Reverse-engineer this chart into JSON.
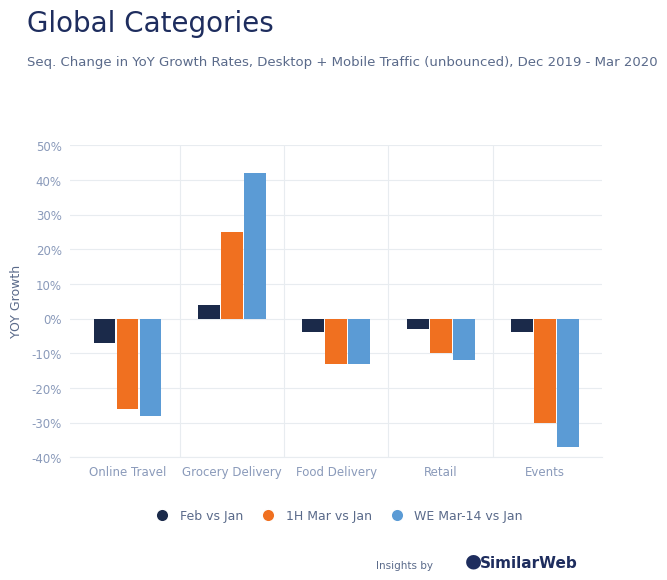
{
  "title": "Global Categories",
  "subtitle": "Seq. Change in YoY Growth Rates, Desktop + Mobile Traffic (unbounced), Dec 2019 - Mar 2020",
  "ylabel": "YOY Growth",
  "categories": [
    "Online Travel",
    "Grocery Delivery",
    "Food Delivery",
    "Retail",
    "Events"
  ],
  "series": {
    "Feb vs Jan": [
      -7,
      4,
      -4,
      -3,
      -4
    ],
    "1H Mar vs Jan": [
      -26,
      25,
      -13,
      -10,
      -30
    ],
    "WE Mar-14 vs Jan": [
      -28,
      42,
      -13,
      -12,
      -37
    ]
  },
  "colors": {
    "Feb vs Jan": "#1b2a4a",
    "1H Mar vs Jan": "#f07020",
    "WE Mar-14 vs Jan": "#5b9bd5"
  },
  "ylim": [
    -40,
    50
  ],
  "yticks": [
    -40,
    -30,
    -20,
    -10,
    0,
    10,
    20,
    30,
    40,
    50
  ],
  "background_color": "#ffffff",
  "title_color": "#1e2d5e",
  "subtitle_color": "#5a6a8a",
  "tick_color": "#8a9aba",
  "grid_color": "#e8ecf0",
  "bar_width": 0.22,
  "title_fontsize": 20,
  "subtitle_fontsize": 9.5,
  "ylabel_fontsize": 9,
  "tick_fontsize": 8.5,
  "legend_fontsize": 9
}
